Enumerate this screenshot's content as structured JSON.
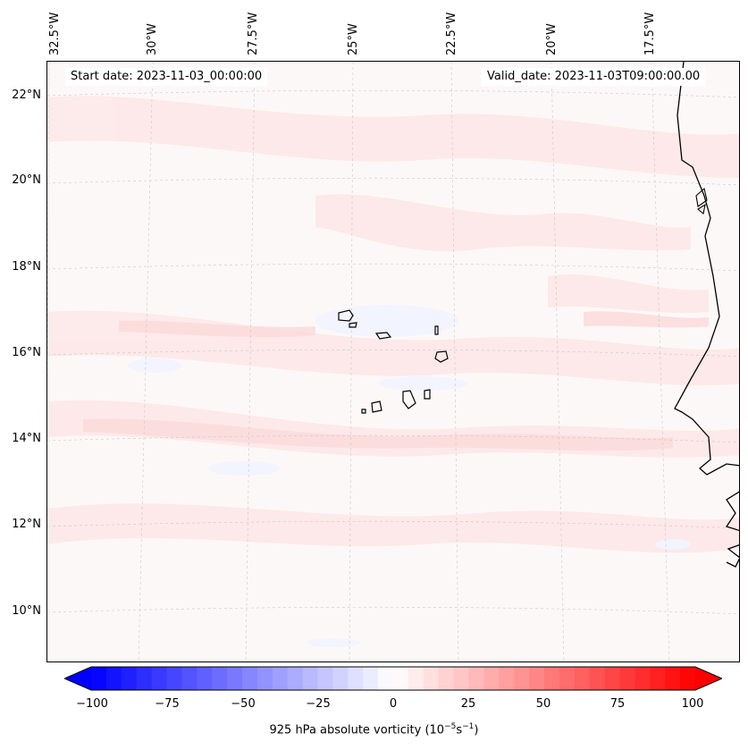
{
  "header": {
    "start_date": "Start date: 2023-11-03_00:00:00",
    "valid_date": "Valid_date: 2023-11-03T09:00:00.00"
  },
  "longitude_labels": [
    "32.5°W",
    "30°W",
    "27.5°W",
    "25°W",
    "22.5°W",
    "20°W",
    "17.5°W"
  ],
  "latitude_labels": [
    "22°N",
    "20°N",
    "18°N",
    "16°N",
    "14°N",
    "12°N",
    "10°N"
  ],
  "colorbar": {
    "label": "925 hPa absolute vorticity (10",
    "label_exp1": "−5",
    "label_mid": "s",
    "label_exp2": "−1",
    "label_end": ")",
    "ticks": [
      "−100",
      "−75",
      "−50",
      "−25",
      "0",
      "25",
      "50",
      "75",
      "100"
    ],
    "min": -100,
    "max": 100,
    "neg_color": "#0000ff",
    "pos_color": "#ff0000"
  },
  "colors": {
    "coastline": "#000000",
    "background_field": "#fdf8f8",
    "pos_weak": "#fde8e8",
    "pos_mid": "#fcdcdc",
    "neg_weak": "#f2f4ff"
  }
}
